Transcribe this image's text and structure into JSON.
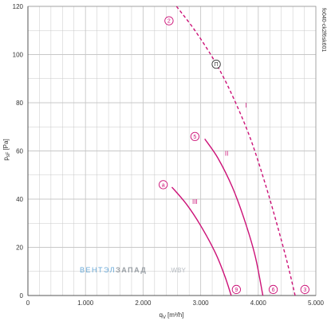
{
  "chart_data": {
    "type": "line",
    "x_axis": {
      "label_main": "q",
      "label_sub": "V",
      "label_unit": "[m³/h]",
      "min": 0,
      "max": 5000,
      "ticks": [
        0,
        1000,
        2000,
        3000,
        4000,
        5000
      ],
      "tick_labels": [
        "0",
        "1.000",
        "2.000",
        "3.000",
        "4.000",
        "5.000"
      ]
    },
    "y_axis": {
      "label_main": "p",
      "label_sub": "sF",
      "label_unit": "[Pa]",
      "min": 0,
      "max": 120,
      "ticks": [
        0,
        20,
        40,
        60,
        80,
        100,
        120
      ],
      "tick_labels": [
        "0",
        "20",
        "40",
        "60",
        "80",
        "100",
        "120"
      ]
    },
    "grid": true,
    "series": [
      {
        "name": "I",
        "dashed": true,
        "points": [
          [
            2580,
            120
          ],
          [
            2900,
            110
          ],
          [
            3250,
            97
          ],
          [
            3550,
            83
          ],
          [
            3850,
            66
          ],
          [
            4100,
            48
          ],
          [
            4320,
            30
          ],
          [
            4500,
            14
          ],
          [
            4640,
            0
          ]
        ]
      },
      {
        "name": "II",
        "dashed": false,
        "points": [
          [
            3070,
            65
          ],
          [
            3300,
            57
          ],
          [
            3550,
            45
          ],
          [
            3780,
            30
          ],
          [
            3950,
            16
          ],
          [
            4080,
            0
          ]
        ]
      },
      {
        "name": "III",
        "dashed": false,
        "points": [
          [
            2500,
            45
          ],
          [
            2750,
            38
          ],
          [
            3000,
            29
          ],
          [
            3250,
            18
          ],
          [
            3420,
            8
          ],
          [
            3530,
            0
          ]
        ]
      }
    ],
    "markers": [
      {
        "text": "2",
        "x": 2450,
        "y": 114,
        "color": "#cc1177"
      },
      {
        "text": "П",
        "x": 3270,
        "y": 96,
        "color": "#333333"
      },
      {
        "text": "5",
        "x": 2900,
        "y": 66,
        "color": "#cc1177"
      },
      {
        "text": "a",
        "x": 2350,
        "y": 46,
        "color": "#cc1177"
      },
      {
        "text": "9",
        "x": 3620,
        "y": 2.5,
        "color": "#cc1177"
      },
      {
        "text": "6",
        "x": 4260,
        "y": 2.5,
        "color": "#cc1177"
      },
      {
        "text": "3",
        "x": 4810,
        "y": 2.5,
        "color": "#cc1177"
      }
    ],
    "curve_labels": [
      {
        "text": "I",
        "x": 3790,
        "y": 78
      },
      {
        "text": "II",
        "x": 3450,
        "y": 58
      },
      {
        "text": "III",
        "x": 2900,
        "y": 38
      }
    ],
    "side_code": "fo040-ck2f6sk601",
    "watermark": {
      "part1": "ВЕНТЭЛ",
      "part2": "ЗАПАД",
      "part3": ".WBY"
    },
    "colors": {
      "curve": "#cc1177",
      "grid": "#c8c8c8",
      "axis": "#555555"
    }
  }
}
